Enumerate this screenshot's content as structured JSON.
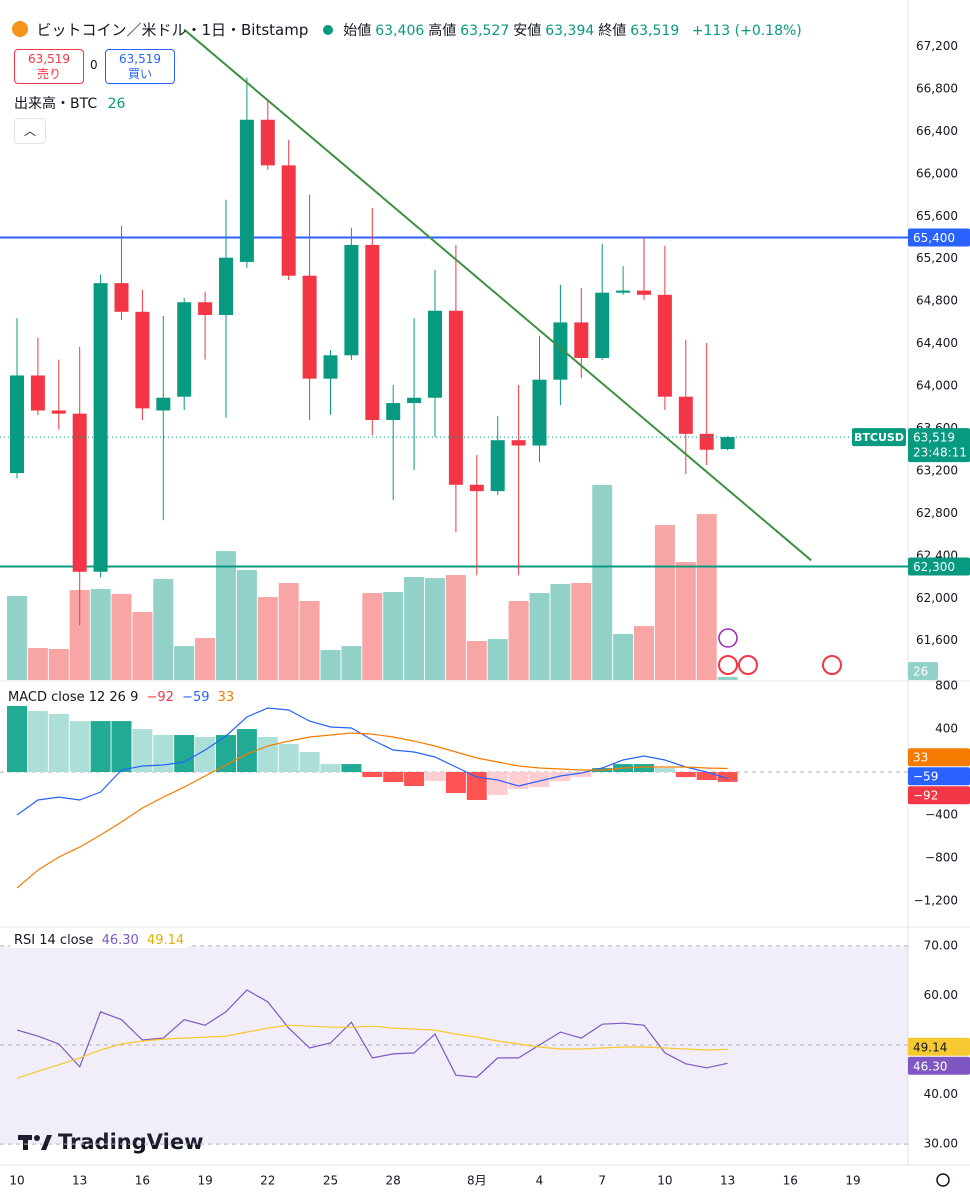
{
  "logo": "TradingView",
  "chart_data": [
    {
      "type": "candlestick",
      "title": "ビットコイン／米ドル・1日・Bitstamp",
      "legend": [
        {
          "name": "始値",
          "label": "63,406"
        },
        {
          "name": "高値",
          "label": "63,527"
        },
        {
          "name": "安値",
          "label": "63,394"
        },
        {
          "name": "終値",
          "label": "63,519"
        }
      ],
      "change": "+113 (+0.18%)",
      "order": {
        "sell": "63,519",
        "sell_label": "売り",
        "spread": "0",
        "buy": "63,519",
        "buy_label": "買い"
      },
      "volume_title": "出来高・BTC",
      "symbol": "BTCUSD",
      "countdown": "23:48:11",
      "categories": [
        "10",
        null,
        null,
        "13",
        null,
        null,
        "16",
        null,
        null,
        "19",
        null,
        null,
        "22",
        null,
        null,
        "25",
        null,
        null,
        "28",
        null,
        null,
        null,
        "8月",
        null,
        null,
        "4",
        null,
        null,
        "7",
        null,
        null,
        "10",
        null,
        null,
        "13",
        null,
        null,
        "16",
        null,
        null,
        "19"
      ],
      "open": [
        63180,
        64100,
        63770,
        63740,
        62250,
        64970,
        64700,
        63770,
        63900,
        64790,
        64670,
        65170,
        66510,
        66080,
        65040,
        64070,
        64290,
        65330,
        63680,
        63840,
        63890,
        64710,
        63070,
        63010,
        63490,
        63440,
        64060,
        64600,
        64265,
        64880,
        64900,
        64860,
        63900,
        63550,
        63406,
        null,
        null,
        null,
        null,
        null,
        null
      ],
      "high": [
        64640,
        64454,
        64250,
        64369,
        65050,
        65510,
        64907,
        64661,
        64831,
        64890,
        65756,
        66907,
        66700,
        66322,
        65803,
        64340,
        65492,
        65680,
        64010,
        64640,
        65095,
        65331,
        63350,
        63717,
        64010,
        64473,
        64954,
        64925,
        65341,
        65130,
        65407,
        65322,
        64435,
        64406,
        63527,
        null,
        null,
        null,
        null,
        null,
        null
      ],
      "low": [
        63130,
        63727,
        63590,
        61745,
        62198,
        64623,
        63680,
        62736,
        63774,
        64250,
        63700,
        65114,
        66040,
        65000,
        63680,
        63730,
        64246,
        63538,
        62925,
        63210,
        63519,
        62623,
        62217,
        62972,
        62217,
        63283,
        63821,
        64076,
        64246,
        64860,
        64812,
        63774,
        63170,
        63255,
        63394,
        null,
        null,
        null,
        null,
        null,
        null
      ],
      "close": [
        64100,
        63770,
        63740,
        62250,
        64970,
        64700,
        63790,
        63890,
        64790,
        64670,
        65210,
        66510,
        66080,
        65040,
        64070,
        64290,
        65330,
        63680,
        63840,
        63890,
        64710,
        63070,
        63010,
        63490,
        63440,
        64060,
        64600,
        64265,
        64880,
        64900,
        64860,
        63900,
        63550,
        63400,
        63519,
        null,
        null,
        null,
        null,
        null,
        null
      ],
      "volume": [
        728,
        277,
        269,
        780,
        789,
        746,
        590,
        876,
        295,
        364,
        1118,
        954,
        720,
        841,
        685,
        260,
        295,
        754,
        763,
        893,
        884,
        910,
        338,
        355,
        685,
        754,
        832,
        841,
        1691,
        399,
        468,
        1344,
        1023,
        1439,
        26,
        null,
        null,
        null,
        null,
        null,
        null
      ],
      "colors": {
        "up": "#089981",
        "down": "#f23645",
        "volume_up": "#92d1c8",
        "volume_down": "#f7a5a5"
      },
      "ylim": [
        61230,
        67450
      ],
      "yticks": [
        {
          "value": 67200,
          "label": "67,200"
        },
        {
          "value": 66800,
          "label": "66,800"
        },
        {
          "value": 66400,
          "label": "66,400"
        },
        {
          "value": 66000,
          "label": "66,000"
        },
        {
          "value": 65600,
          "label": "65,600"
        },
        {
          "value": 65200,
          "label": "65,200"
        },
        {
          "value": 64800,
          "label": "64,800"
        },
        {
          "value": 64400,
          "label": "64,400"
        },
        {
          "value": 64000,
          "label": "64,000"
        },
        {
          "value": 63600,
          "label": "63,600"
        },
        {
          "value": 63200,
          "label": "63,200"
        },
        {
          "value": 62800,
          "label": "62,800"
        },
        {
          "value": 62400,
          "label": "62,400"
        },
        {
          "value": 62000,
          "label": "62,000"
        },
        {
          "value": 61600,
          "label": "61,600"
        }
      ],
      "grid": false,
      "hlines": [
        {
          "value": 65400,
          "label": "65,400",
          "color": "#2962ff"
        },
        {
          "value": 62300,
          "label": "62,300",
          "color": "#089981"
        }
      ],
      "trendline": {
        "x": [
          8,
          38
        ],
        "y": [
          67360,
          62358
        ],
        "color": "#3d9140"
      }
    },
    {
      "type": "macd",
      "title": "MACD close 12 26 9",
      "ylim": [
        -1423,
        828
      ],
      "yticks": [
        800,
        400,
        {
          "value": -400,
          "label": "−400"
        },
        {
          "value": -800,
          "label": "−800"
        },
        {
          "value": -1200,
          "label": "−1,200"
        }
      ],
      "zeroline": true,
      "histogram_colors": {
        "rise_pos": "#22ab94",
        "fall_pos": "#acdfd8",
        "fall_neg": "#ff5252",
        "rise_neg": "#ffcdd2"
      },
      "series": [
        {
          "style": "histogram",
          "color": "#f23645",
          "last_label": "−92",
          "values": [
            614,
            567,
            540,
            474,
            474,
            474,
            400,
            344,
            344,
            326,
            344,
            400,
            326,
            260,
            186,
            74,
            74,
            -47,
            -93,
            -130,
            -84,
            -195,
            -260,
            -214,
            -158,
            -140,
            -84,
            -47,
            37,
            74,
            74,
            37,
            -47,
            -74,
            -92,
            null,
            null,
            null,
            null,
            null,
            null
          ]
        },
        {
          "style": "line",
          "color": "#2962ff",
          "last_label": "−59",
          "values": [
            -400,
            -260,
            -233,
            -260,
            -186,
            19,
            56,
            65,
            93,
            205,
            335,
            512,
            595,
            577,
            474,
            419,
            409,
            298,
            205,
            186,
            140,
            47,
            -47,
            -74,
            -130,
            -84,
            -37,
            -9,
            37,
            112,
            149,
            112,
            47,
            0,
            -59,
            null,
            null,
            null,
            null,
            null,
            null
          ]
        },
        {
          "style": "line",
          "color": "#f57c00",
          "last_label": "33",
          "values": [
            -1079,
            -912,
            -791,
            -698,
            -586,
            -465,
            -335,
            -233,
            -140,
            -37,
            65,
            167,
            242,
            288,
            326,
            344,
            363,
            353,
            326,
            288,
            242,
            186,
            130,
            93,
            56,
            37,
            28,
            19,
            19,
            37,
            47,
            47,
            47,
            37,
            33,
            null,
            null,
            null,
            null,
            null,
            null
          ]
        }
      ]
    },
    {
      "type": "rsi",
      "title": "RSI 14 close",
      "ylim": [
        26.8,
        73.2
      ],
      "yticks": [
        {
          "value": 70,
          "label": "70.00"
        },
        {
          "value": 60,
          "label": "60.00"
        },
        {
          "value": 40,
          "label": "40.00"
        },
        {
          "value": 30,
          "label": "30.00"
        }
      ],
      "band": [
        30,
        70
      ],
      "midline": 50,
      "band_color": "#7e57c2",
      "series": [
        {
          "color": "#7e57c2",
          "last_label": "46.30",
          "values": [
            53.0,
            51.8,
            50.2,
            45.6,
            56.7,
            55.1,
            51.0,
            51.4,
            55.1,
            54.0,
            56.7,
            61.1,
            58.7,
            53.4,
            49.4,
            50.4,
            54.6,
            47.4,
            48.2,
            48.4,
            52.2,
            43.9,
            43.5,
            47.4,
            47.4,
            50.0,
            52.6,
            51.4,
            54.2,
            54.4,
            54.0,
            48.4,
            46.2,
            45.4,
            46.3,
            null,
            null,
            null,
            null,
            null,
            null
          ]
        },
        {
          "color": "#f5c92f",
          "last_label": "49.14",
          "values": [
            43.3,
            44.7,
            46.0,
            47.4,
            49.0,
            50.2,
            50.8,
            51.2,
            51.4,
            51.6,
            51.8,
            52.6,
            53.4,
            54.0,
            53.8,
            53.6,
            53.6,
            53.8,
            53.4,
            53.2,
            53.0,
            52.2,
            51.6,
            50.8,
            50.2,
            49.6,
            49.2,
            49.2,
            49.4,
            49.6,
            49.6,
            49.4,
            49.2,
            49.0,
            49.14,
            null,
            null,
            null,
            null,
            null,
            null
          ]
        }
      ]
    }
  ]
}
